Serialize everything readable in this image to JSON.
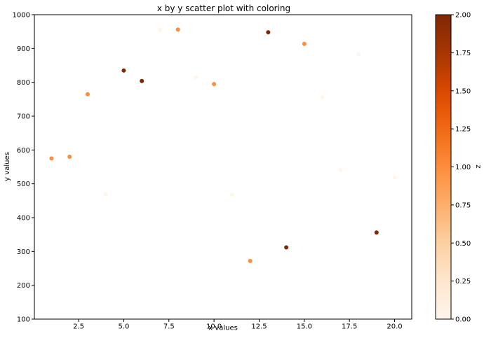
{
  "chart_data": {
    "type": "scatter",
    "title": "x by y scatter plot with coloring",
    "xlabel": "x values",
    "ylabel": "y values",
    "xlim": [
      0.05,
      20.95
    ],
    "ylim": [
      100,
      1000
    ],
    "grid": false,
    "x_ticks": [
      2.5,
      5.0,
      7.5,
      10.0,
      12.5,
      15.0,
      17.5,
      20.0
    ],
    "x_tick_labels": [
      "2.5",
      "5.0",
      "7.5",
      "10.0",
      "12.5",
      "15.0",
      "17.5",
      "20.0"
    ],
    "y_ticks": [
      100,
      200,
      300,
      400,
      500,
      600,
      700,
      800,
      900,
      1000
    ],
    "y_tick_labels": [
      "100",
      "200",
      "300",
      "400",
      "500",
      "600",
      "700",
      "800",
      "900",
      "1000"
    ],
    "colormap": "Oranges",
    "colorbar": {
      "label": "z",
      "range": [
        0,
        2
      ],
      "ticks": [
        0.0,
        0.25,
        0.5,
        0.75,
        1.0,
        1.25,
        1.5,
        1.75,
        2.0
      ],
      "tick_labels": [
        "0.00",
        "0.25",
        "0.50",
        "0.75",
        "1.00",
        "1.25",
        "1.50",
        "1.75",
        "2.00"
      ]
    },
    "points": [
      {
        "x": 1,
        "y": 575,
        "z": 1
      },
      {
        "x": 2,
        "y": 580,
        "z": 1
      },
      {
        "x": 3,
        "y": 765,
        "z": 1
      },
      {
        "x": 4,
        "y": 470,
        "z": 0
      },
      {
        "x": 5,
        "y": 835,
        "z": 2
      },
      {
        "x": 6,
        "y": 804,
        "z": 2
      },
      {
        "x": 7,
        "y": 955,
        "z": 0
      },
      {
        "x": 8,
        "y": 956,
        "z": 1
      },
      {
        "x": 9,
        "y": 815,
        "z": 0
      },
      {
        "x": 10,
        "y": 795,
        "z": 1
      },
      {
        "x": 11,
        "y": 468,
        "z": 0
      },
      {
        "x": 12,
        "y": 272,
        "z": 1
      },
      {
        "x": 13,
        "y": 948,
        "z": 2
      },
      {
        "x": 14,
        "y": 312,
        "z": 2
      },
      {
        "x": 15,
        "y": 914,
        "z": 1
      },
      {
        "x": 16,
        "y": 756,
        "z": 0
      },
      {
        "x": 17,
        "y": 541,
        "z": 0
      },
      {
        "x": 18,
        "y": 883,
        "z": 0
      },
      {
        "x": 19,
        "y": 356,
        "z": 2
      },
      {
        "x": 20,
        "y": 519,
        "z": 0
      }
    ]
  }
}
